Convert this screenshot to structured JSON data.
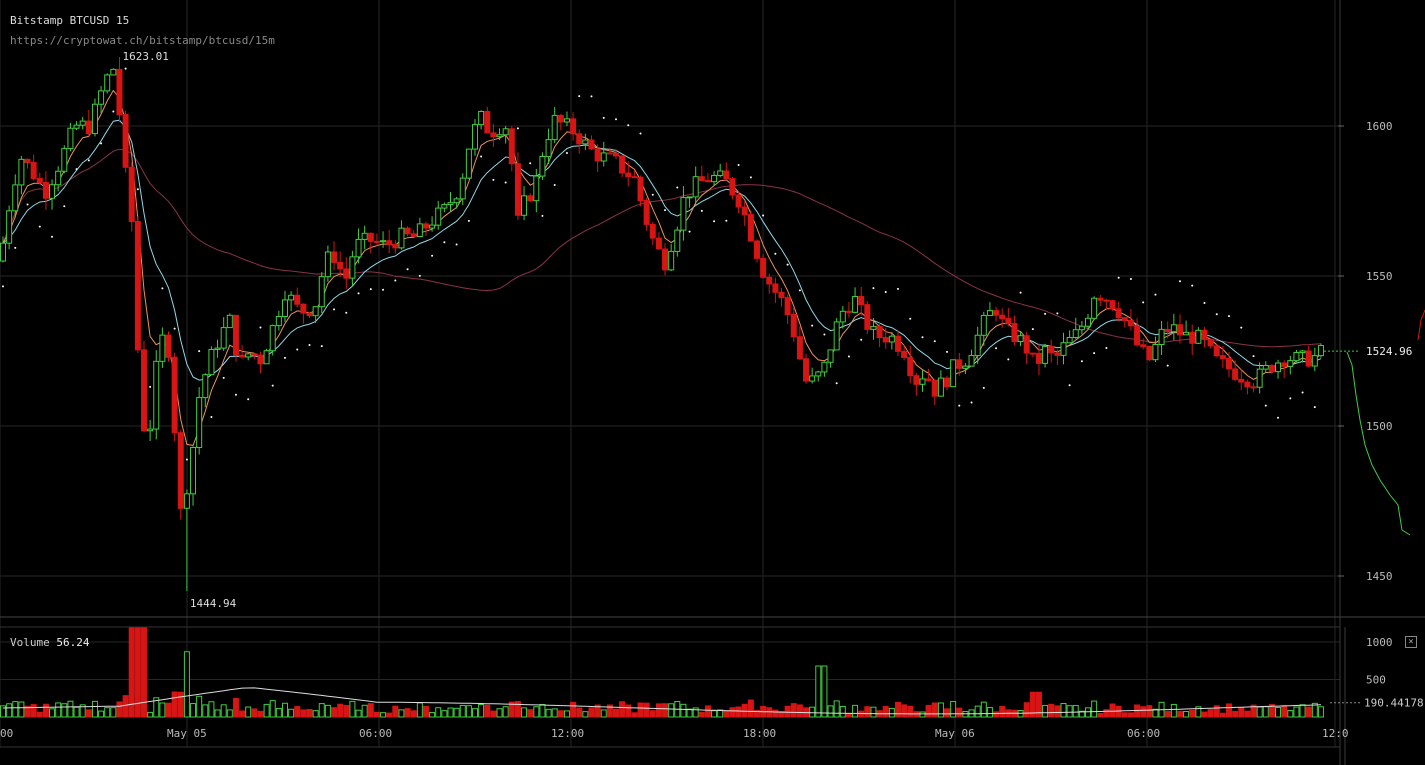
{
  "header": {
    "title": "Bitstamp BTCUSD 15",
    "url": "https://cryptowat.ch/bitstamp/btcusd/15m"
  },
  "volume_panel": {
    "label": "Volume",
    "value": "56.24",
    "close_symbol": "×"
  },
  "colors": {
    "up": "#3fcf3f",
    "down": "#d71515",
    "ema_fast": "#e8955a",
    "ema_slow": "#8fd8e6",
    "ma_long": "#8a3346",
    "psar": "#ffffff",
    "grid": "#262626",
    "volume_avg": "#dddddd"
  },
  "chart_data": {
    "type": "candlestick",
    "price_axis": {
      "ticks": [
        1450,
        1500,
        1550,
        1600
      ],
      "current": "1524.96",
      "range": [
        1437,
        1642
      ]
    },
    "volume_axis": {
      "ticks": [
        500,
        1000
      ],
      "current": "190.44178",
      "range": [
        0,
        1200
      ]
    },
    "time_ticks": [
      "00",
      "May 05",
      "06:00",
      "12:00",
      "18:00",
      "May 06",
      "06:00",
      "12:0"
    ],
    "annotations": {
      "high": "1623.01",
      "low": "1444.94"
    },
    "keypoints": [
      [
        0,
        1555
      ],
      [
        10,
        1575
      ],
      [
        20,
        1590
      ],
      [
        32,
        1585
      ],
      [
        45,
        1578
      ],
      [
        60,
        1588
      ],
      [
        75,
        1600
      ],
      [
        90,
        1600
      ],
      [
        105,
        1615
      ],
      [
        115,
        1620
      ],
      [
        125,
        1585
      ],
      [
        135,
        1560
      ],
      [
        140,
        1500
      ],
      [
        150,
        1500
      ],
      [
        160,
        1530
      ],
      [
        170,
        1525
      ],
      [
        180,
        1470
      ],
      [
        190,
        1485
      ],
      [
        200,
        1512
      ],
      [
        210,
        1522
      ],
      [
        220,
        1530
      ],
      [
        230,
        1535
      ],
      [
        240,
        1520
      ],
      [
        250,
        1525
      ],
      [
        260,
        1522
      ],
      [
        270,
        1530
      ],
      [
        285,
        1545
      ],
      [
        300,
        1538
      ],
      [
        315,
        1540
      ],
      [
        325,
        1555
      ],
      [
        335,
        1557
      ],
      [
        345,
        1548
      ],
      [
        355,
        1560
      ],
      [
        370,
        1562
      ],
      [
        385,
        1560
      ],
      [
        400,
        1563
      ],
      [
        415,
        1563
      ],
      [
        430,
        1568
      ],
      [
        445,
        1572
      ],
      [
        460,
        1580
      ],
      [
        470,
        1595
      ],
      [
        480,
        1603
      ],
      [
        490,
        1598
      ],
      [
        500,
        1600
      ],
      [
        510,
        1600
      ],
      [
        515,
        1565
      ],
      [
        525,
        1575
      ],
      [
        535,
        1580
      ],
      [
        545,
        1595
      ],
      [
        555,
        1602
      ],
      [
        565,
        1600
      ],
      [
        575,
        1598
      ],
      [
        590,
        1592
      ],
      [
        600,
        1590
      ],
      [
        615,
        1588
      ],
      [
        625,
        1585
      ],
      [
        635,
        1582
      ],
      [
        645,
        1570
      ],
      [
        655,
        1560
      ],
      [
        665,
        1555
      ],
      [
        675,
        1565
      ],
      [
        685,
        1577
      ],
      [
        695,
        1580
      ],
      [
        710,
        1583
      ],
      [
        725,
        1582
      ],
      [
        740,
        1575
      ],
      [
        755,
        1560
      ],
      [
        765,
        1550
      ],
      [
        775,
        1545
      ],
      [
        785,
        1540
      ],
      [
        795,
        1530
      ],
      [
        805,
        1515
      ],
      [
        815,
        1515
      ],
      [
        825,
        1520
      ],
      [
        835,
        1532
      ],
      [
        845,
        1540
      ],
      [
        855,
        1542
      ],
      [
        865,
        1535
      ],
      [
        875,
        1530
      ],
      [
        890,
        1530
      ],
      [
        905,
        1525
      ],
      [
        915,
        1515
      ],
      [
        925,
        1518
      ],
      [
        935,
        1512
      ],
      [
        945,
        1515
      ],
      [
        955,
        1520
      ],
      [
        965,
        1522
      ],
      [
        975,
        1528
      ],
      [
        985,
        1535
      ],
      [
        995,
        1540
      ],
      [
        1005,
        1532
      ],
      [
        1015,
        1530
      ],
      [
        1025,
        1527
      ],
      [
        1035,
        1520
      ],
      [
        1045,
        1525
      ],
      [
        1055,
        1522
      ],
      [
        1065,
        1527
      ],
      [
        1075,
        1530
      ],
      [
        1085,
        1535
      ],
      [
        1095,
        1545
      ],
      [
        1110,
        1542
      ],
      [
        1120,
        1538
      ],
      [
        1130,
        1532
      ],
      [
        1140,
        1525
      ],
      [
        1150,
        1522
      ],
      [
        1160,
        1530
      ],
      [
        1170,
        1533
      ],
      [
        1185,
        1530
      ],
      [
        1195,
        1530
      ],
      [
        1205,
        1527
      ],
      [
        1215,
        1522
      ],
      [
        1225,
        1520
      ],
      [
        1240,
        1517
      ],
      [
        1255,
        1515
      ],
      [
        1270,
        1520
      ],
      [
        1285,
        1523
      ],
      [
        1300,
        1522
      ],
      [
        1315,
        1523
      ],
      [
        1324,
        1524.96
      ]
    ]
  }
}
